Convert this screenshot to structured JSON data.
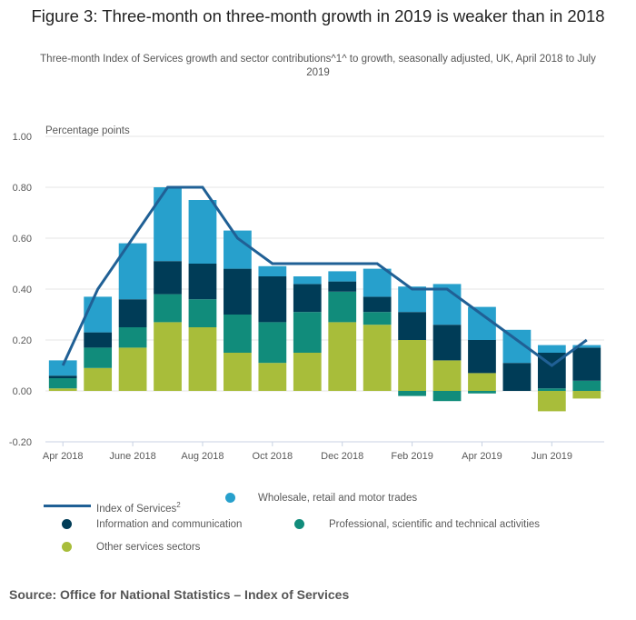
{
  "title": "Figure 3: Three-month on three-month growth in 2019 is weaker than in 2018",
  "subtitle": "Three-month Index of Services growth and sector contributions^1^ to growth, seasonally adjusted, UK, April 2018 to July 2019",
  "source": "Source: Office for National Statistics – Index of Services",
  "colors": {
    "line": "#206095",
    "wholesale": "#27a0cc",
    "information": "#003c57",
    "professional": "#118c7b",
    "other": "#a8bd3a",
    "grid": "#e5e5e5",
    "axis": "#c8d2e3"
  },
  "legend": {
    "line_label": "Index of Services",
    "line_sup": "2",
    "items": [
      {
        "key": "wholesale",
        "label": "Wholesale, retail and motor trades"
      },
      {
        "key": "information",
        "label": "Information and communication"
      },
      {
        "key": "professional",
        "label": "Professional, scientific and technical activities"
      },
      {
        "key": "other",
        "label": "Other services sectors"
      }
    ]
  },
  "chart_data": {
    "type": "bar",
    "stacked": true,
    "title": "Figure 3: Three-month on three-month growth in 2019 is weaker than in 2018",
    "ylabel": "Percentage points",
    "xlabel": "",
    "ylim": [
      -0.2,
      1.0
    ],
    "yticks": [
      -0.2,
      0.0,
      0.2,
      0.4,
      0.6,
      0.8,
      1.0
    ],
    "ytick_labels": [
      "-0.20",
      "0.00",
      "0.20",
      "0.40",
      "0.60",
      "0.80",
      "1.00"
    ],
    "grid": true,
    "legend_position": "bottom",
    "categories": [
      "Apr 2018",
      "May 2018",
      "Jun 2018",
      "Jul 2018",
      "Aug 2018",
      "Sep 2018",
      "Oct 2018",
      "Nov 2018",
      "Dec 2018",
      "Jan 2019",
      "Feb 2019",
      "Mar 2019",
      "Apr 2019",
      "May 2019",
      "Jun 2019",
      "Jul 2019"
    ],
    "xtick_labels": [
      {
        "index": 0,
        "label": "Apr 2018"
      },
      {
        "index": 2,
        "label": "June 2018"
      },
      {
        "index": 4,
        "label": "Aug 2018"
      },
      {
        "index": 6,
        "label": "Oct 2018"
      },
      {
        "index": 8,
        "label": "Dec 2018"
      },
      {
        "index": 10,
        "label": "Feb 2019"
      },
      {
        "index": 12,
        "label": "Apr 2019"
      },
      {
        "index": 14,
        "label": "Jun 2019"
      }
    ],
    "series": [
      {
        "key": "other",
        "name": "Other services sectors",
        "values": [
          0.01,
          0.09,
          0.17,
          0.27,
          0.25,
          0.15,
          0.11,
          0.15,
          0.27,
          0.26,
          0.2,
          0.12,
          0.07,
          0.0,
          -0.08,
          -0.03
        ]
      },
      {
        "key": "professional",
        "name": "Professional, scientific and technical activities",
        "values": [
          0.04,
          0.08,
          0.08,
          0.11,
          0.11,
          0.15,
          0.16,
          0.16,
          0.12,
          0.05,
          -0.02,
          -0.04,
          -0.01,
          0.0,
          0.01,
          0.04
        ]
      },
      {
        "key": "information",
        "name": "Information and communication",
        "values": [
          0.01,
          0.06,
          0.11,
          0.13,
          0.14,
          0.18,
          0.18,
          0.11,
          0.04,
          0.06,
          0.11,
          0.14,
          0.13,
          0.11,
          0.14,
          0.13
        ]
      },
      {
        "key": "wholesale",
        "name": "Wholesale, retail and motor trades",
        "values": [
          0.06,
          0.14,
          0.22,
          0.29,
          0.25,
          0.15,
          0.04,
          0.03,
          0.04,
          0.11,
          0.1,
          0.16,
          0.13,
          0.13,
          0.03,
          0.01
        ]
      }
    ],
    "line": {
      "name": "Index of Services",
      "values": [
        0.1,
        0.4,
        0.6,
        0.8,
        0.8,
        0.6,
        0.5,
        0.5,
        0.5,
        0.5,
        0.4,
        0.4,
        0.3,
        0.2,
        0.1,
        0.2
      ]
    }
  }
}
